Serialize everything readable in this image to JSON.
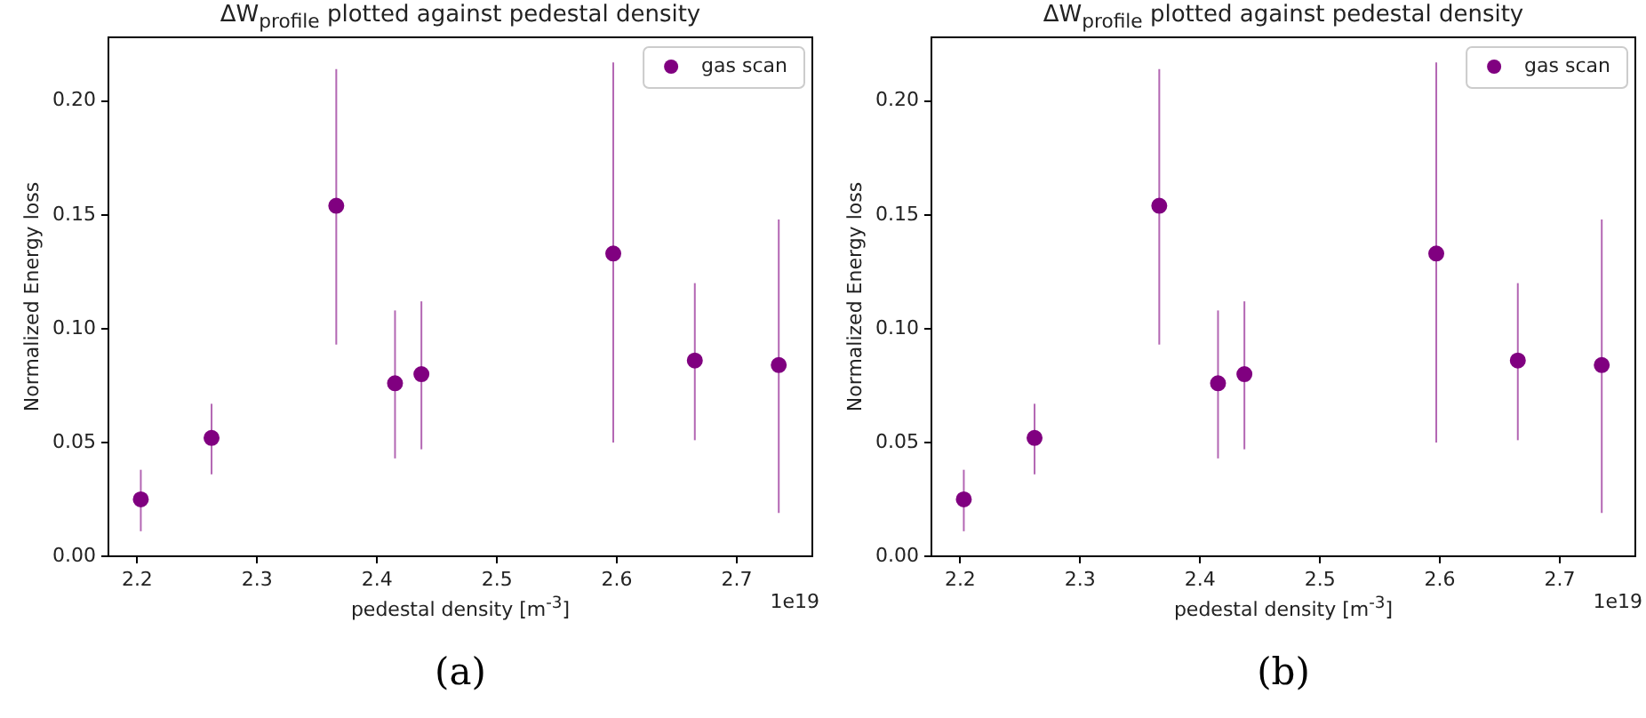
{
  "chart_data": [
    {
      "type": "scatter",
      "title": "ΔW$_{profile}$ plotted against pedestal density",
      "xlabel": "pedestal density [m$^{-3}$]",
      "ylabel": "Normalized Energy loss",
      "annotations": [
        "1e19",
        "(a)"
      ],
      "x": [
        2.203,
        2.262,
        2.366,
        2.415,
        2.437,
        2.597,
        2.665,
        2.735
      ],
      "series": [
        {
          "name": "gas scan",
          "color": "#800080",
          "values": [
            0.025,
            0.052,
            0.154,
            0.076,
            0.08,
            0.133,
            0.086,
            0.084
          ],
          "errors": [
            [
              0.011,
              0.038
            ],
            [
              0.036,
              0.067
            ],
            [
              0.093,
              0.214
            ],
            [
              0.043,
              0.108
            ],
            [
              0.047,
              0.112
            ],
            [
              0.05,
              0.217
            ],
            [
              0.051,
              0.12
            ],
            [
              0.019,
              0.148
            ]
          ]
        }
      ],
      "xlim": [
        2.176,
        2.763
      ],
      "xticks": [
        2.2,
        2.3,
        2.4,
        2.5,
        2.6,
        2.7
      ],
      "ylim": [
        0,
        0.228
      ],
      "yticks": [
        {
          "value": 0,
          "label": "0.00"
        },
        {
          "value": 0.05,
          "label": "0.05"
        },
        {
          "value": 0.1,
          "label": "0.10"
        },
        {
          "value": 0.15,
          "label": "0.15"
        },
        {
          "value": 0.2,
          "label": "0.20"
        }
      ],
      "grid": false,
      "legend": "top right",
      "marker": "circle"
    },
    {
      "type": "scatter",
      "title": "ΔW$_{profile}$ plotted against pedestal density",
      "xlabel": "pedestal density [m$^{-3}$]",
      "ylabel": "Normalized Energy loss",
      "annotations": [
        "1e19",
        "(b)"
      ],
      "x": [
        2.203,
        2.262,
        2.366,
        2.415,
        2.437,
        2.597,
        2.665,
        2.735
      ],
      "series": [
        {
          "name": "gas scan",
          "color": "#800080",
          "values": [
            0.025,
            0.052,
            0.154,
            0.076,
            0.08,
            0.133,
            0.086,
            0.084
          ],
          "errors": [
            [
              0.011,
              0.038
            ],
            [
              0.036,
              0.067
            ],
            [
              0.093,
              0.214
            ],
            [
              0.043,
              0.108
            ],
            [
              0.047,
              0.112
            ],
            [
              0.05,
              0.217
            ],
            [
              0.051,
              0.12
            ],
            [
              0.019,
              0.148
            ]
          ]
        }
      ],
      "xlim": [
        2.176,
        2.763
      ],
      "xticks": [
        2.2,
        2.3,
        2.4,
        2.5,
        2.6,
        2.7
      ],
      "ylim": [
        0,
        0.228
      ],
      "yticks": [
        {
          "value": 0,
          "label": "0.00"
        },
        {
          "value": 0.05,
          "label": "0.05"
        },
        {
          "value": 0.1,
          "label": "0.10"
        },
        {
          "value": 0.15,
          "label": "0.15"
        },
        {
          "value": 0.2,
          "label": "0.20"
        }
      ],
      "grid": false,
      "legend": "top right",
      "marker": "circle"
    }
  ]
}
